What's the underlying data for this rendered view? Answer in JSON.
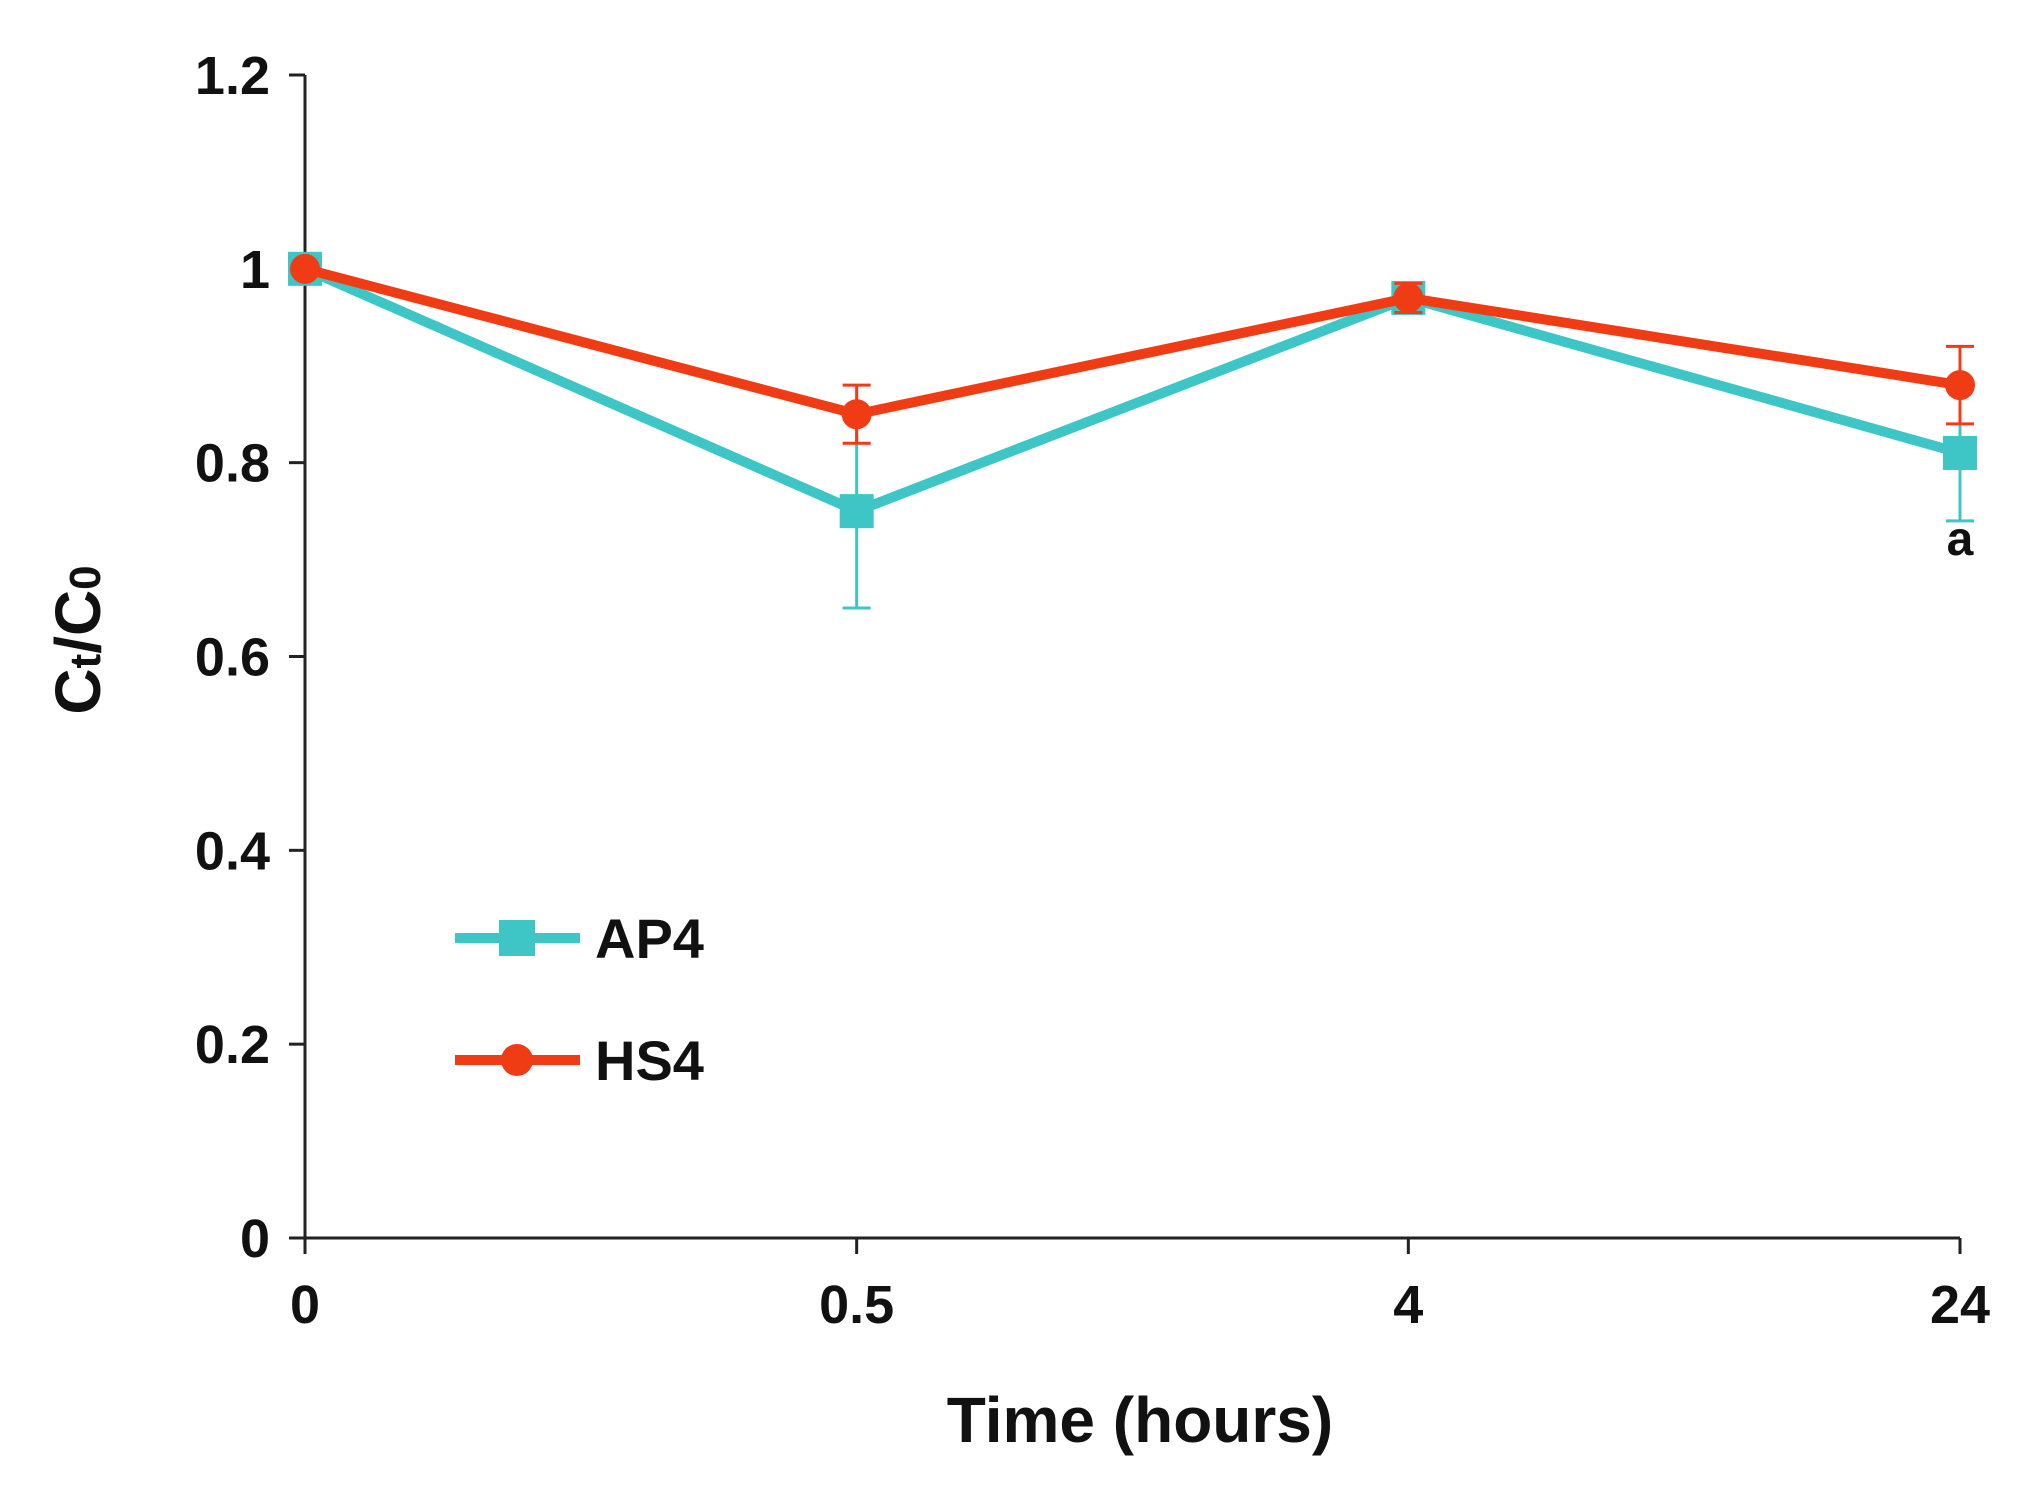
{
  "chart_data": {
    "type": "line",
    "title": "",
    "xlabel": "Time (hours)",
    "ylabel": "Ct/C0",
    "ylabel_parts": {
      "main1": "C",
      "sub1": "t",
      "slash": "/",
      "main2": "C",
      "sub2": "0"
    },
    "categories": [
      "0",
      "0.5",
      "4",
      "24"
    ],
    "ylim": [
      0,
      1.2
    ],
    "yticks": [
      "0",
      "0.2",
      "0.4",
      "0.6",
      "0.8",
      "1",
      "1.2"
    ],
    "ytick_values": [
      0,
      0.2,
      0.4,
      0.6,
      0.8,
      1.0,
      1.2
    ],
    "grid": false,
    "legend_position": "lower-left",
    "series": [
      {
        "name": "AP4",
        "color": "#3ec5c5",
        "marker": "square",
        "values": [
          1.0,
          0.75,
          0.97,
          0.81
        ],
        "errors": [
          0.0,
          0.1,
          0.01,
          0.07
        ]
      },
      {
        "name": "HS4",
        "color": "#f03c14",
        "marker": "circle",
        "values": [
          1.0,
          0.85,
          0.97,
          0.88
        ],
        "errors": [
          0.0,
          0.03,
          0.015,
          0.04
        ]
      }
    ],
    "annotations": [
      {
        "text": "a",
        "category": "24",
        "value": 0.72
      }
    ]
  }
}
